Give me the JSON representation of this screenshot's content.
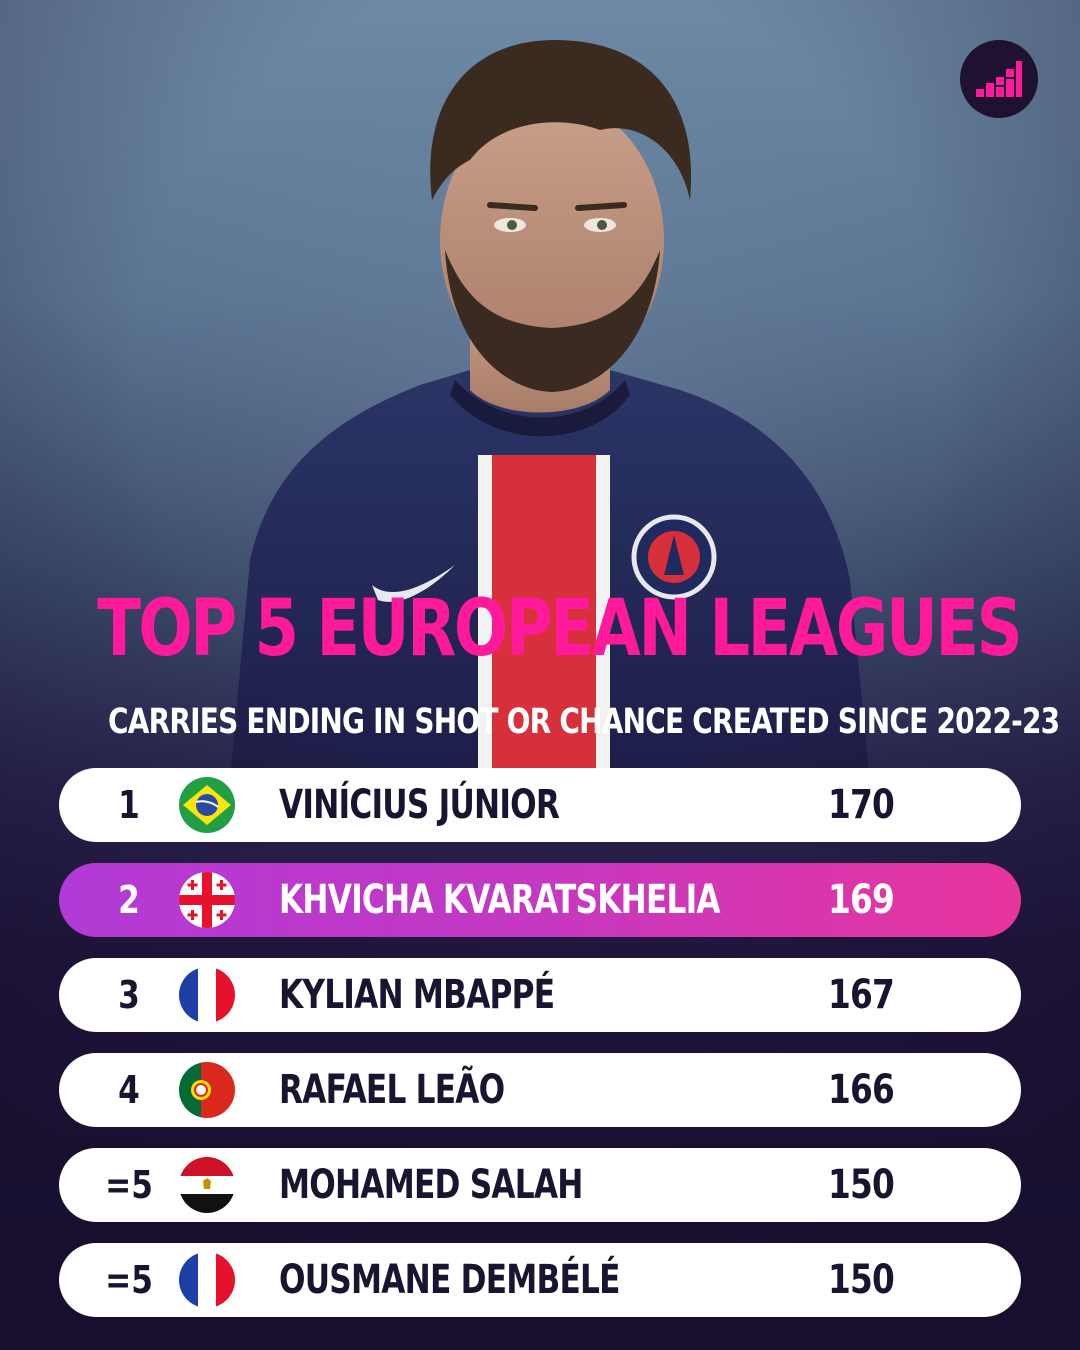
{
  "header": {
    "title": "TOP 5 EUROPEAN LEAGUES",
    "subtitle": "CARRIES ENDING IN SHOT OR CHANCE CREATED  SINCE 2022-23"
  },
  "brand": {
    "logo_icon": "stairs-pixel-logo-icon",
    "accent": "#ff1a9c",
    "highlight_start": "#b23ad6",
    "highlight_end": "#e8359e"
  },
  "photo": {
    "subject": "player-photo",
    "shirt_badge": "PARIS SAINT-GERMAIN"
  },
  "rows": [
    {
      "rank": "1",
      "flag": "brazil-flag-icon",
      "name": "VINÍCIUS JÚNIOR",
      "value": "170",
      "highlight": false
    },
    {
      "rank": "2",
      "flag": "georgia-flag-icon",
      "name": "KHVICHA KVARATSKHELIA",
      "value": "169",
      "highlight": true
    },
    {
      "rank": "3",
      "flag": "france-flag-icon",
      "name": "KYLIAN MBAPPÉ",
      "value": "167",
      "highlight": false
    },
    {
      "rank": "4",
      "flag": "portugal-flag-icon",
      "name": "RAFAEL LEÃO",
      "value": "166",
      "highlight": false
    },
    {
      "rank": "=5",
      "flag": "egypt-flag-icon",
      "name": "MOHAMED SALAH",
      "value": "150",
      "highlight": false
    },
    {
      "rank": "=5",
      "flag": "france-flag-icon",
      "name": "OUSMANE DEMBÉLÉ",
      "value": "150",
      "highlight": false
    }
  ]
}
